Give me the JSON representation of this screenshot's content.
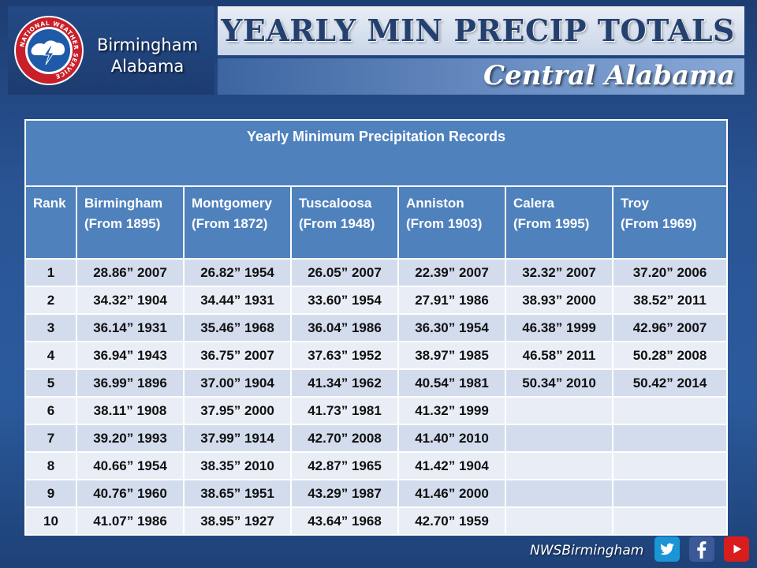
{
  "header": {
    "office_line1": "Birmingham",
    "office_line2": "Alabama",
    "title": "YEARLY MIN PRECIP TOTALS",
    "subtitle": "Central Alabama",
    "seal_text": "NATIONAL WEATHER SERVICE"
  },
  "table": {
    "caption": "Yearly Minimum Precipitation Records",
    "columns": [
      {
        "name": "Rank",
        "since": ""
      },
      {
        "name": "Birmingham",
        "since": "(From 1895)"
      },
      {
        "name": "Montgomery",
        "since": "(From 1872)"
      },
      {
        "name": "Tuscaloosa",
        "since": "(From 1948)"
      },
      {
        "name": "Anniston",
        "since": "(From 1903)"
      },
      {
        "name": "Calera",
        "since": "(From  1995)"
      },
      {
        "name": "Troy",
        "since": "(From 1969)"
      }
    ],
    "rows": [
      [
        "1",
        "28.86”  2007",
        "26.82”  1954",
        "26.05”  2007",
        "22.39”  2007",
        "32.32” 2007",
        "37.20”  2006"
      ],
      [
        "2",
        "34.32”  1904",
        "34.44”  1931",
        "33.60”  1954",
        "27.91”  1986",
        "38.93” 2000",
        "38.52”  2011"
      ],
      [
        "3",
        "36.14”  1931",
        "35.46”  1968",
        "36.04”  1986",
        "36.30”  1954",
        "46.38”  1999",
        "42.96”  2007"
      ],
      [
        "4",
        "36.94”  1943",
        "36.75”  2007",
        "37.63”  1952",
        "38.97”  1985",
        "46.58”  2011",
        "50.28”  2008"
      ],
      [
        "5",
        "36.99”  1896",
        "37.00”  1904",
        "41.34”  1962",
        "40.54”  1981",
        "50.34”  2010",
        "50.42”  2014"
      ],
      [
        "6",
        "38.11”  1908",
        "37.95”  2000",
        "41.73”  1981",
        "41.32”  1999",
        "",
        ""
      ],
      [
        "7",
        "39.20”  1993",
        "37.99” 1914",
        "42.70”  2008",
        "41.40”  2010",
        "",
        ""
      ],
      [
        "8",
        "40.66”  1954",
        "38.35”  2010",
        "42.87”  1965",
        "41.42”  1904",
        "",
        ""
      ],
      [
        "9",
        "40.76”  1960",
        "38.65”  1951",
        "43.29”  1987",
        "41.46”  2000",
        "",
        ""
      ],
      [
        "10",
        "41.07”  1986",
        "38.95”  1927",
        "43.64”  1968",
        "42.70”  1959",
        "",
        ""
      ]
    ]
  },
  "footer": {
    "handle": "NWSBirmingham",
    "icons": [
      "twitter-icon",
      "facebook-icon",
      "youtube-icon"
    ]
  },
  "colors": {
    "table_header": "#4f81bd",
    "row_odd": "#d2dcec",
    "row_even": "#e9eef6",
    "title_text": "#24406f"
  }
}
